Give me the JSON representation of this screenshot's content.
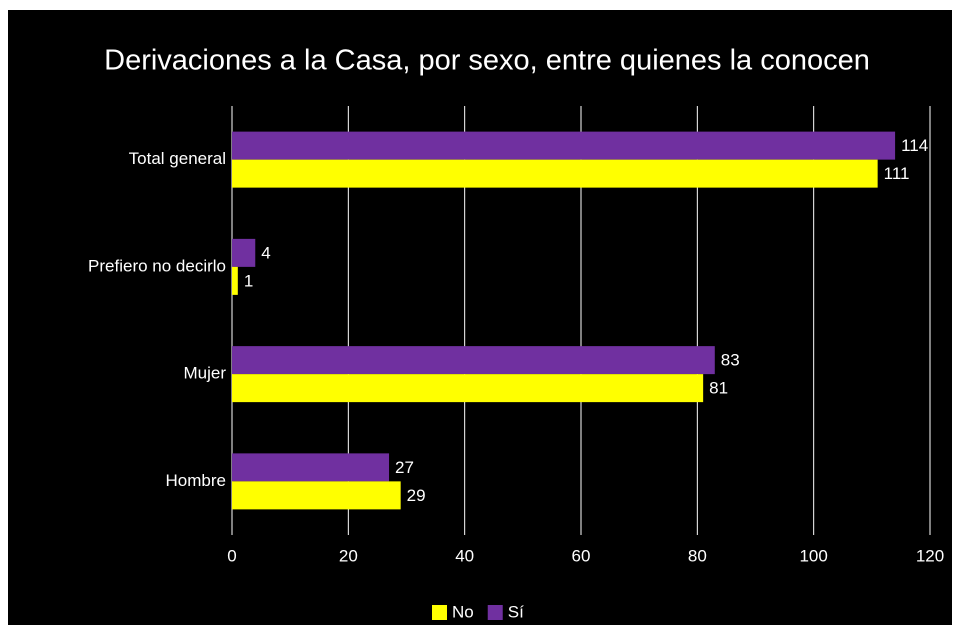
{
  "chart_data": {
    "type": "bar",
    "orientation": "horizontal",
    "title": "Derivaciones a la Casa, por sexo, entre quienes la conocen",
    "categories": [
      "Total general",
      "Prefiero no decirlo",
      "Mujer",
      "Hombre"
    ],
    "series": [
      {
        "name": "No",
        "color": "#ffff00",
        "values": [
          111,
          1,
          81,
          29
        ]
      },
      {
        "name": "Sí",
        "color": "#7030a0",
        "values": [
          114,
          4,
          83,
          27
        ]
      }
    ],
    "xlim": [
      0,
      120
    ],
    "xticks": [
      0,
      20,
      40,
      60,
      80,
      100,
      120
    ],
    "grid": true,
    "legend": "bottom"
  }
}
